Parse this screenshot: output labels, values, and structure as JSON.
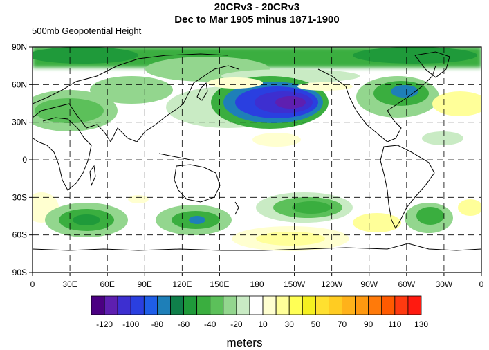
{
  "title_line1": "20CRv3 - 20CRv3",
  "title_line2": "Dec to Mar 1905 minus 1871-1900",
  "variable": "500mb Geopotential Height",
  "units": "meters",
  "lat_labels": [
    "90N",
    "60N",
    "30N",
    "0",
    "30S",
    "60S",
    "90S"
  ],
  "lon_labels": [
    "0",
    "30E",
    "60E",
    "90E",
    "120E",
    "150E",
    "180",
    "150W",
    "120W",
    "90W",
    "60W",
    "30W",
    "0"
  ],
  "colorbar": {
    "labels": [
      "-120",
      "-100",
      "-80",
      "-60",
      "-40",
      "-20",
      "10",
      "30",
      "50",
      "70",
      "90",
      "110",
      "130"
    ],
    "colors": [
      "#4b0082",
      "#5e1fb0",
      "#3d2fd0",
      "#2a3fe0",
      "#1f5ee8",
      "#1e7fb8",
      "#0f7f4a",
      "#1f9a3a",
      "#3aae3f",
      "#5cc05a",
      "#93d68e",
      "#c9ebc4",
      "#ffffff",
      "#ffffd0",
      "#ffff99",
      "#ffff55",
      "#f5f020",
      "#ffe030",
      "#ffcc22",
      "#ffb21a",
      "#ff9910",
      "#ff7a0a",
      "#ff5a00",
      "#ff3a10",
      "#ff1a10"
    ]
  }
}
